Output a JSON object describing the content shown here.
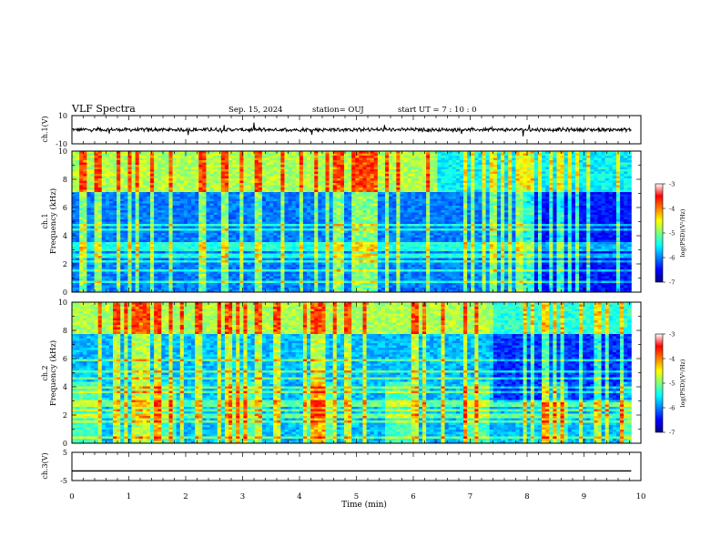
{
  "header": {
    "title": "VLF Spectra",
    "date": "Sep. 15, 2024",
    "station": "station= OUJ",
    "start": "start UT =  7 : 10 : 0"
  },
  "chart_data": [
    {
      "type": "line",
      "panel": "ch1-waveform",
      "ylabel": "ch.1(V)",
      "ylim": [
        -10,
        10
      ],
      "yticks": [
        "10",
        "-10"
      ],
      "x_range_min": [
        0,
        10
      ],
      "data_extent_min": [
        0,
        9.83
      ],
      "series": [
        {
          "values_note_free": true,
          "mean": 0,
          "amplitude": [
            -2.6,
            2.6
          ]
        }
      ]
    },
    {
      "type": "heatmap",
      "panel": "ch1-spectrogram",
      "ylabel_top": "ch.1",
      "ylabel": "Frequency (kHz)",
      "ylim": [
        0,
        10
      ],
      "yticks": [
        "0",
        "2",
        "4",
        "6",
        "8",
        "10"
      ],
      "x_range_min": [
        0,
        10
      ],
      "data_extent_min": [
        0,
        9.83
      ],
      "colorbar": {
        "label": "log(PSD)(V²/Hz)",
        "range": [
          -7,
          -3
        ],
        "ticks": [
          "-3",
          "-4",
          "-5",
          "-6",
          "-7"
        ]
      }
    },
    {
      "type": "heatmap",
      "panel": "ch2-spectrogram",
      "ylabel_top": "ch.2",
      "ylabel": "Frequency (kHz)",
      "ylim": [
        0,
        10
      ],
      "yticks": [
        "0",
        "2",
        "4",
        "6",
        "8",
        "10"
      ],
      "x_range_min": [
        0,
        10
      ],
      "data_extent_min": [
        0,
        9.83
      ],
      "colorbar": {
        "label": "log(PSD)(V²/Hz)",
        "range": [
          -7,
          -3
        ],
        "ticks": [
          "-3",
          "-4",
          "-5",
          "-6",
          "-7"
        ]
      }
    },
    {
      "type": "line",
      "panel": "ch3-waveform",
      "ylabel": "ch.3(V)",
      "ylim": [
        -5,
        5
      ],
      "yticks": [
        "5",
        "-5"
      ],
      "xlabel": "Time (min)",
      "xticks": [
        "0",
        "1",
        "2",
        "3",
        "4",
        "5",
        "6",
        "7",
        "8",
        "9",
        "10"
      ],
      "x_range_min": [
        0,
        10
      ],
      "data_extent_min": [
        0,
        9.83
      ],
      "series": [
        {
          "constant_value": -1.6
        }
      ]
    }
  ],
  "colors": {
    "colormap": [
      "#000080",
      "#0000ff",
      "#0080ff",
      "#00ffff",
      "#80ff80",
      "#ffff00",
      "#ff8000",
      "#ff0000",
      "#ffffff"
    ]
  }
}
